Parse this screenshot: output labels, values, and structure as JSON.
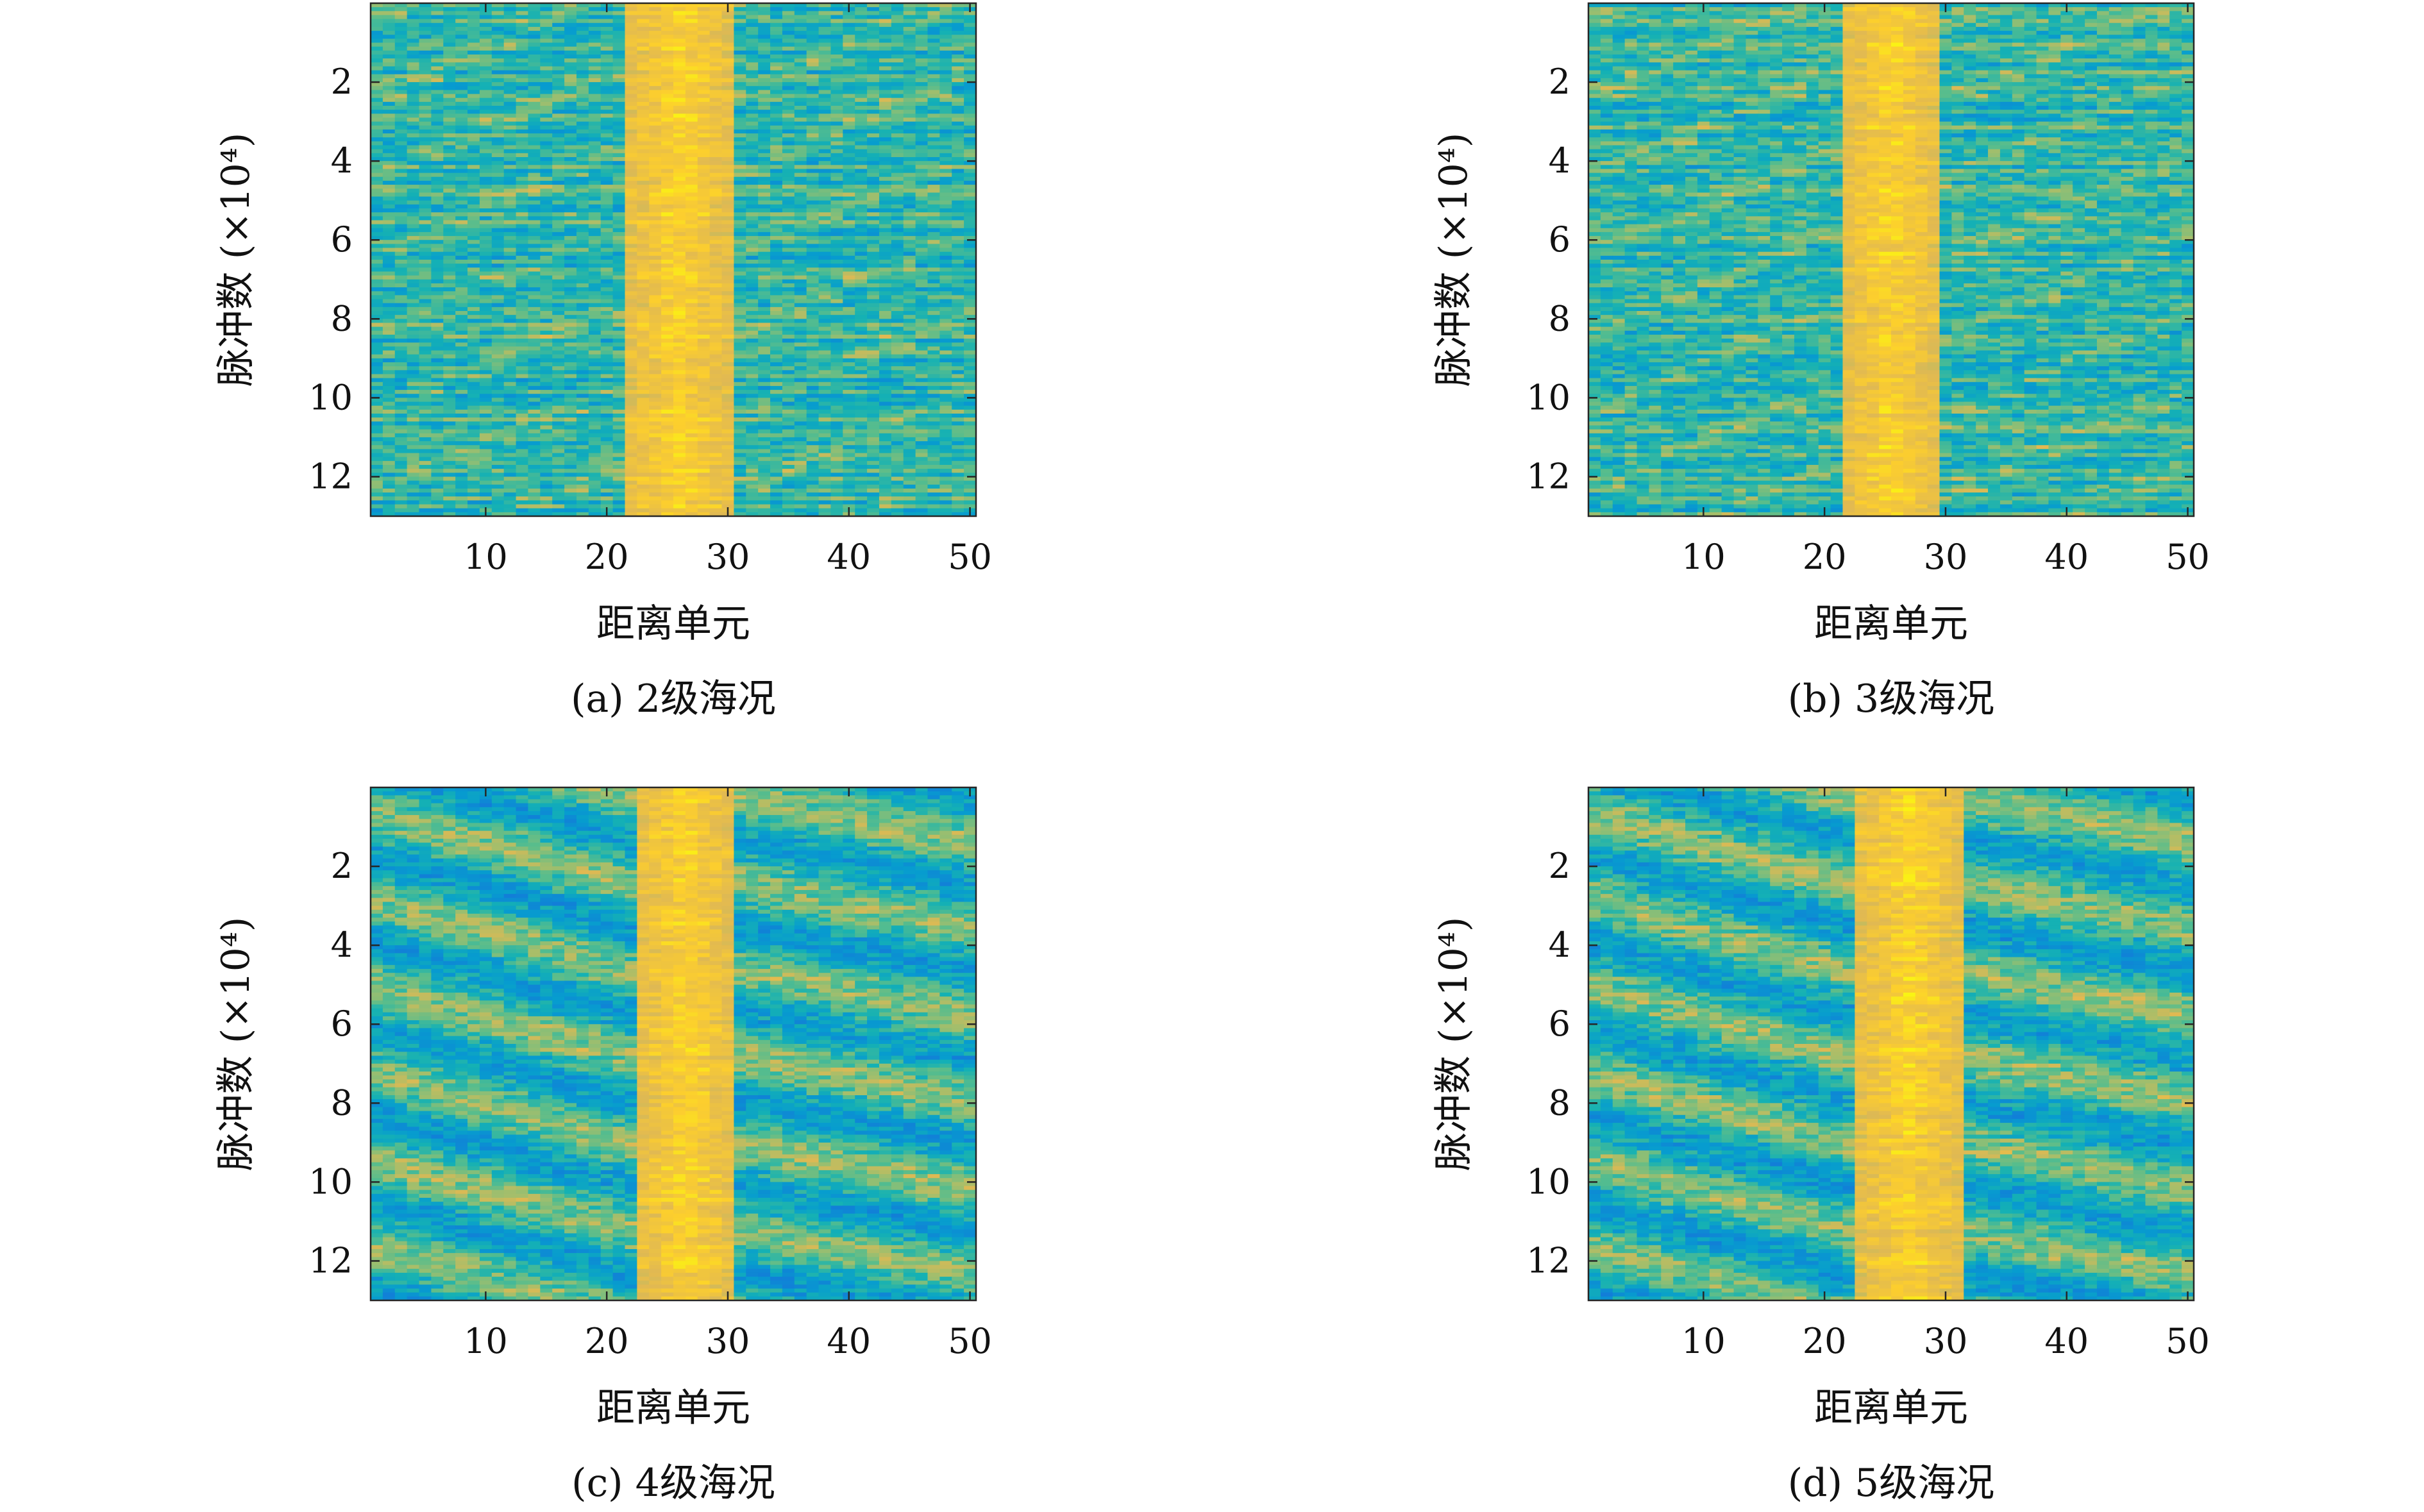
{
  "colors": {
    "colormap": "parula",
    "axis": "#262626",
    "text": "#111111"
  },
  "chart_data": [
    {
      "type": "heatmap",
      "caption": "(a) 2级海况",
      "xlabel": "距离单元",
      "ylabel": "脉冲数 (×10⁴)",
      "xlim": [
        0.5,
        50.5
      ],
      "ylim": [
        0,
        13
      ],
      "y_reversed": true,
      "xticks": [
        10,
        20,
        30,
        40,
        50
      ],
      "yticks": [
        2,
        4,
        6,
        8,
        10,
        12
      ],
      "target_range_cells": [
        22,
        30
      ],
      "texture": "horizontal-banding",
      "legend": "none",
      "grid": false
    },
    {
      "type": "heatmap",
      "caption": "(b) 3级海况",
      "xlabel": "距离单元",
      "ylabel": "脉冲数 (×10⁴)",
      "xlim": [
        0.5,
        50.5
      ],
      "ylim": [
        0,
        13
      ],
      "y_reversed": true,
      "xticks": [
        10,
        20,
        30,
        40,
        50
      ],
      "yticks": [
        2,
        4,
        6,
        8,
        10,
        12
      ],
      "target_range_cells": [
        22,
        29
      ],
      "texture": "horizontal-banding",
      "legend": "none",
      "grid": false
    },
    {
      "type": "heatmap",
      "caption": "(c) 4级海况",
      "xlabel": "距离单元",
      "ylabel": "脉冲数 (×10⁴)",
      "xlim": [
        0.5,
        50.5
      ],
      "ylim": [
        0,
        13
      ],
      "y_reversed": true,
      "xticks": [
        10,
        20,
        30,
        40,
        50
      ],
      "yticks": [
        2,
        4,
        6,
        8,
        10,
        12
      ],
      "target_range_cells": [
        23,
        30
      ],
      "texture": "diagonal-wave-streaks",
      "legend": "none",
      "grid": false
    },
    {
      "type": "heatmap",
      "caption": "(d) 5级海况",
      "xlabel": "距离单元",
      "ylabel": "脉冲数 (×10⁴)",
      "xlim": [
        0.5,
        50.5
      ],
      "ylim": [
        0,
        13
      ],
      "y_reversed": true,
      "xticks": [
        10,
        20,
        30,
        40,
        50
      ],
      "yticks": [
        2,
        4,
        6,
        8,
        10,
        12
      ],
      "target_range_cells": [
        23,
        31
      ],
      "texture": "diagonal-wave-streaks",
      "legend": "none",
      "grid": false
    }
  ]
}
